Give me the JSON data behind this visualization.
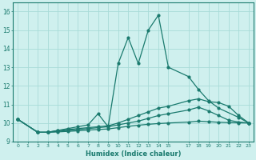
{
  "xlabel": "Humidex (Indice chaleur)",
  "bg_color": "#cff0ee",
  "grid_color": "#a8dbd8",
  "line_color": "#1a7a6e",
  "xlim": [
    -0.5,
    23.5
  ],
  "ylim": [
    9.0,
    16.5
  ],
  "yticks": [
    9,
    10,
    11,
    12,
    13,
    14,
    15,
    16
  ],
  "lines": [
    {
      "x": [
        0,
        2,
        3,
        4,
        5,
        6,
        7,
        8,
        9,
        10,
        11,
        12,
        13,
        14,
        15,
        17,
        18,
        19,
        20,
        22,
        23
      ],
      "y": [
        10.2,
        9.5,
        9.5,
        9.6,
        9.7,
        9.8,
        9.9,
        10.5,
        9.8,
        13.2,
        14.6,
        13.2,
        15.0,
        15.8,
        13.0,
        12.5,
        11.8,
        11.2,
        10.8,
        10.3,
        10.0
      ]
    },
    {
      "x": [
        0,
        2,
        3,
        4,
        5,
        6,
        7,
        8,
        9,
        10,
        11,
        12,
        13,
        14,
        15,
        17,
        18,
        19,
        20,
        21,
        22,
        23
      ],
      "y": [
        10.2,
        9.5,
        9.5,
        9.6,
        9.65,
        9.7,
        9.75,
        9.8,
        9.85,
        10.0,
        10.2,
        10.4,
        10.6,
        10.8,
        10.9,
        11.2,
        11.3,
        11.15,
        11.1,
        10.9,
        10.4,
        10.0
      ]
    },
    {
      "x": [
        0,
        2,
        3,
        4,
        5,
        6,
        7,
        8,
        9,
        10,
        11,
        12,
        13,
        14,
        15,
        17,
        18,
        19,
        20,
        21,
        22,
        23
      ],
      "y": [
        10.2,
        9.5,
        9.5,
        9.55,
        9.6,
        9.65,
        9.7,
        9.75,
        9.8,
        9.9,
        10.0,
        10.1,
        10.25,
        10.4,
        10.5,
        10.7,
        10.85,
        10.65,
        10.4,
        10.15,
        10.05,
        10.0
      ]
    },
    {
      "x": [
        0,
        2,
        3,
        4,
        5,
        6,
        7,
        8,
        9,
        10,
        11,
        12,
        13,
        14,
        15,
        17,
        18,
        19,
        20,
        21,
        22,
        23
      ],
      "y": [
        10.2,
        9.5,
        9.5,
        9.52,
        9.55,
        9.58,
        9.62,
        9.65,
        9.68,
        9.75,
        9.82,
        9.88,
        9.93,
        9.97,
        10.0,
        10.05,
        10.1,
        10.07,
        10.04,
        10.02,
        10.01,
        10.0
      ]
    }
  ]
}
